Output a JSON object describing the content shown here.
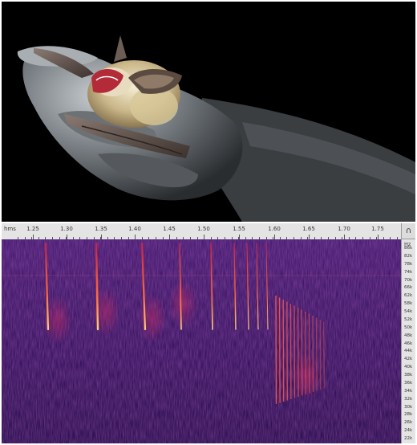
{
  "ruler": {
    "unit": "hms",
    "ticks": [
      "1.25",
      "1.30",
      "1.35",
      "1.40",
      "1.45",
      "1.50",
      "1.55",
      "1.60",
      "1.65",
      "1.70",
      "1.75"
    ]
  },
  "freq_axis": {
    "unit": "Hz",
    "labels": [
      "86k",
      "82k",
      "78k",
      "74k",
      "70k",
      "66k",
      "62k",
      "58k",
      "54k",
      "52k",
      "50k",
      "48k",
      "46k",
      "44k",
      "42k",
      "40k",
      "38k",
      "36k",
      "34k",
      "32k",
      "30k",
      "28k",
      "26k",
      "24k",
      "22k"
    ]
  },
  "headphones_icon": "headphones-icon",
  "colors": {
    "spectrogram_bg": "#2a0b52",
    "call_core": "#ffb05a",
    "call_glow": "#e0304a"
  }
}
